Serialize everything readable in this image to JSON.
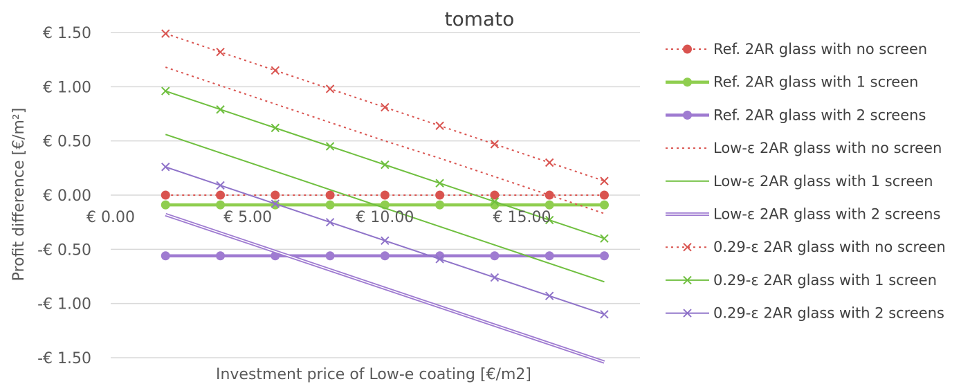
{
  "chart_data": {
    "type": "line",
    "title": "tomato",
    "xlabel": "Investment price of Low-e coating [€/m2]",
    "ylabel": "Profit difference [€/m²]",
    "xlim": [
      0,
      19.3
    ],
    "ylim": [
      -1.5,
      1.5
    ],
    "grid": true,
    "legend_position": "right",
    "x_ticks": [
      0,
      5,
      10,
      15
    ],
    "x_tick_labels": [
      "€ 0.00",
      "€ 5.00",
      "€ 10.00",
      "€ 15.00"
    ],
    "y_ticks": [
      1.5,
      1.0,
      0.5,
      0.0,
      -0.5,
      -1.0,
      -1.5
    ],
    "y_tick_labels": [
      "€ 1.50",
      "€ 1.00",
      "€ 0.50",
      "€ 0.00",
      "-€ 0.50",
      "-€ 1.00",
      "-€ 1.50"
    ],
    "x": [
      2,
      4,
      6,
      8,
      10,
      12,
      14,
      16,
      18
    ],
    "series": [
      {
        "name": "Ref. 2AR glass with no screen",
        "color": "#d9534f",
        "style": "dotted",
        "marker": "circle",
        "values": [
          0.0,
          0.0,
          0.0,
          0.0,
          0.0,
          0.0,
          0.0,
          0.0,
          0.0
        ]
      },
      {
        "name": "Ref. 2AR glass with 1 screen",
        "color": "#8fce4f",
        "style": "solid-thick",
        "marker": "circle",
        "values": [
          -0.09,
          -0.09,
          -0.09,
          -0.09,
          -0.09,
          -0.09,
          -0.09,
          -0.09,
          -0.09
        ]
      },
      {
        "name": "Ref. 2AR glass with 2 screens",
        "color": "#9f7bd1",
        "style": "solid-thick",
        "marker": "circle",
        "values": [
          -0.56,
          -0.56,
          -0.56,
          -0.56,
          -0.56,
          -0.56,
          -0.56,
          -0.56,
          -0.56
        ]
      },
      {
        "name": "Low-ε 2AR glass with no screen",
        "color": "#d9534f",
        "style": "dotted",
        "marker": "none",
        "values": [
          1.18,
          1.01,
          0.84,
          0.67,
          0.5,
          0.34,
          0.17,
          0.0,
          -0.17
        ]
      },
      {
        "name": "Low-ε 2AR glass with 1 screen",
        "color": "#6fbf3f",
        "style": "solid",
        "marker": "none",
        "values": [
          0.56,
          0.39,
          0.22,
          0.05,
          -0.12,
          -0.29,
          -0.46,
          -0.63,
          -0.8
        ]
      },
      {
        "name": "Low-ε 2AR glass with 2 screens",
        "color": "#9f7bd1",
        "style": "double",
        "marker": "none",
        "values": [
          -0.18,
          -0.35,
          -0.52,
          -0.69,
          -0.86,
          -1.03,
          -1.2,
          -1.37,
          -1.54
        ]
      },
      {
        "name": "0.29-ε 2AR glass with no screen",
        "color": "#d9534f",
        "style": "dotted",
        "marker": "x",
        "values": [
          1.49,
          1.32,
          1.15,
          0.98,
          0.81,
          0.64,
          0.47,
          0.3,
          0.13
        ]
      },
      {
        "name": "0.29-ε 2AR glass with 1 screen",
        "color": "#6fbf3f",
        "style": "solid",
        "marker": "x",
        "values": [
          0.96,
          0.79,
          0.62,
          0.45,
          0.28,
          0.11,
          -0.06,
          -0.23,
          -0.4
        ]
      },
      {
        "name": "0.29-ε 2AR glass with 2 screens",
        "color": "#8f73c9",
        "style": "solid",
        "marker": "x",
        "values": [
          0.26,
          0.09,
          -0.08,
          -0.25,
          -0.42,
          -0.59,
          -0.76,
          -0.93,
          -1.1
        ]
      }
    ]
  }
}
